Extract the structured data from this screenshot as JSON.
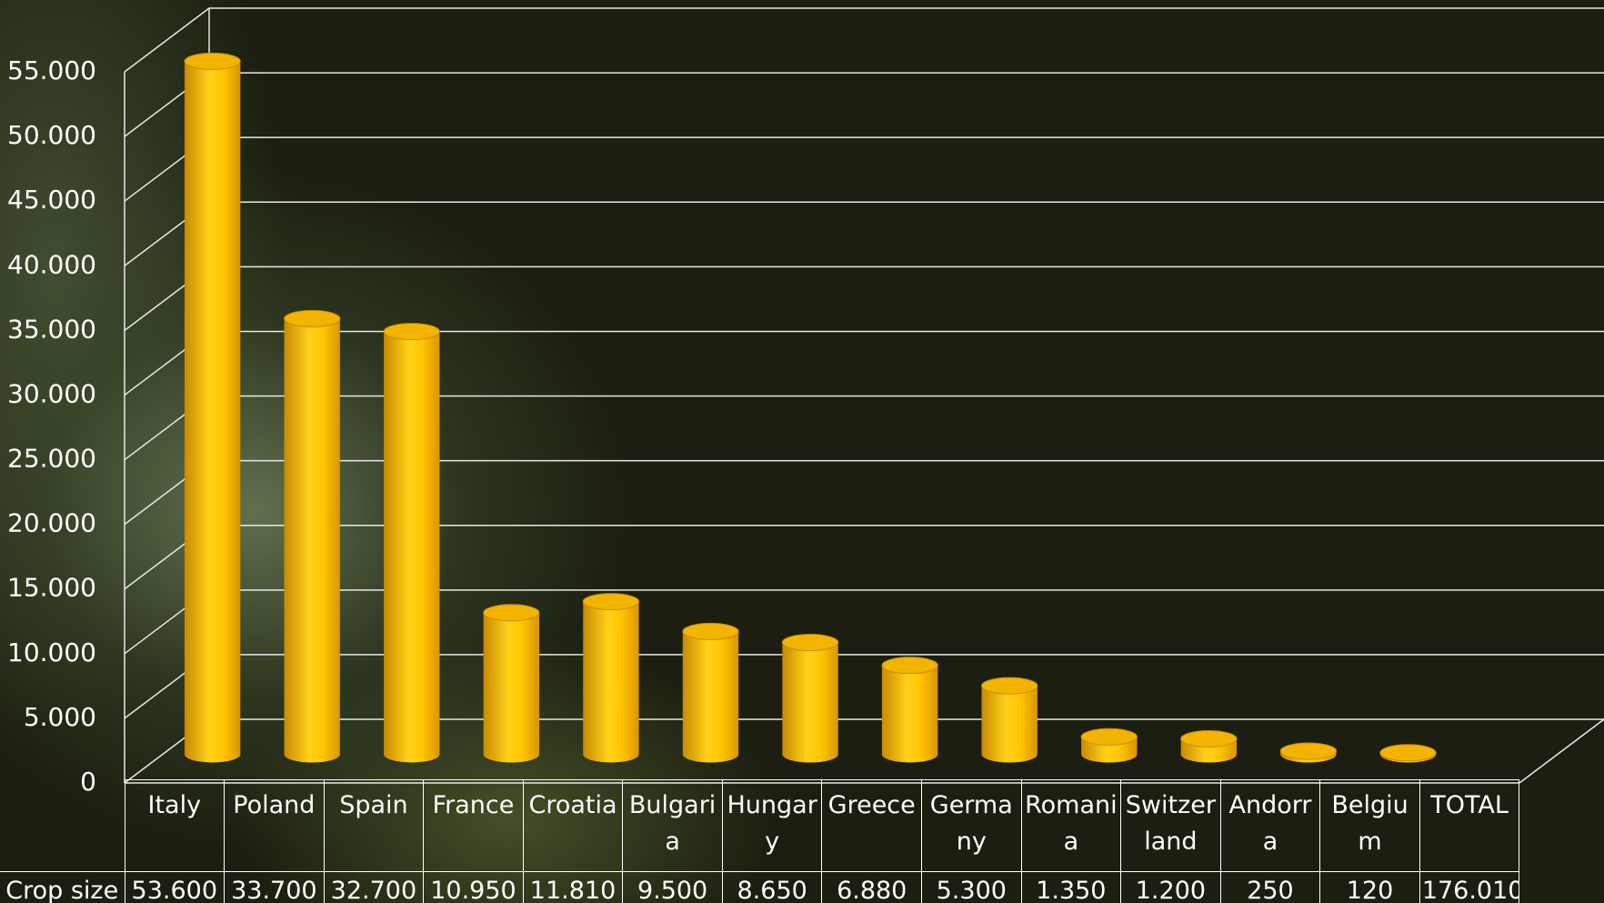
{
  "chart_data": {
    "type": "bar3d-cylinder",
    "categories": [
      "Italy",
      "Poland",
      "Spain",
      "France",
      "Croatia",
      "Bulgaria",
      "Hungary",
      "Greece",
      "Germany",
      "Romania",
      "Switzerland",
      "Andorra",
      "Belgium",
      "TOTAL"
    ],
    "series": [
      {
        "name": "Crop size",
        "color": "#ffc000",
        "values": [
          53600,
          33700,
          32700,
          10950,
          11810,
          9500,
          8650,
          6880,
          5300,
          1350,
          1200,
          250,
          120,
          176010
        ],
        "value_labels": [
          "53.600",
          "33.700",
          "32.700",
          "10.950",
          "11.810",
          "9.500",
          "8.650",
          "6.880",
          "5.300",
          "1.350",
          "1.200",
          "250",
          "120",
          "176.010"
        ]
      }
    ],
    "ylim": [
      0,
      55000
    ],
    "yticks": [
      0,
      {
        "value": 5000,
        "label": "5.000"
      },
      {
        "value": 10000,
        "label": "10.000"
      },
      {
        "value": 15000,
        "label": "15.000"
      },
      {
        "value": 20000,
        "label": "20.000"
      },
      {
        "value": 25000,
        "label": "25.000"
      },
      {
        "value": 30000,
        "label": "30.000"
      },
      {
        "value": 35000,
        "label": "35.000"
      },
      {
        "value": 40000,
        "label": "40.000"
      },
      {
        "value": 45000,
        "label": "45.000"
      },
      {
        "value": 50000,
        "label": "50.000"
      },
      {
        "value": 55000,
        "label": "55.000"
      }
    ],
    "grid": true
  }
}
